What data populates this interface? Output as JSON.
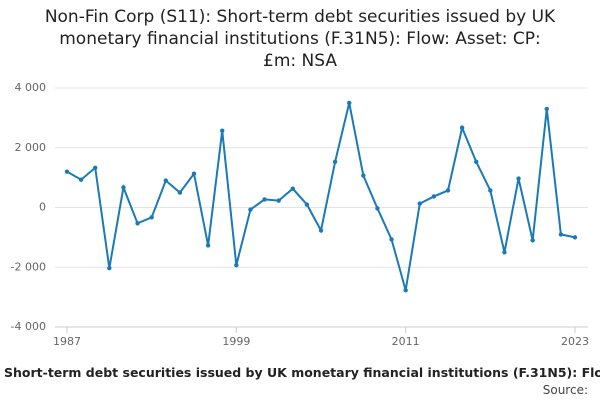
{
  "chart_data": {
    "type": "line",
    "title": [
      "Non-Fin Corp (S11): Short-term debt securities issued by UK",
      "monetary financial institutions (F.31N5): Flow: Asset: CP:",
      "£m: NSA"
    ],
    "x": [
      1987,
      1988,
      1989,
      1990,
      1991,
      1992,
      1993,
      1994,
      1995,
      1996,
      1997,
      1998,
      1999,
      2000,
      2001,
      2002,
      2003,
      2004,
      2005,
      2006,
      2007,
      2008,
      2009,
      2010,
      2011,
      2012,
      2013,
      2014,
      2015,
      2016,
      2017,
      2018,
      2019,
      2020,
      2021,
      2022,
      2023
    ],
    "series": [
      {
        "color": "#1a7ab8",
        "values": [
          1200,
          930,
          1330,
          -2030,
          670,
          -530,
          -330,
          900,
          500,
          1130,
          -1270,
          2570,
          -1930,
          -70,
          270,
          230,
          630,
          100,
          -770,
          1530,
          3500,
          1070,
          -30,
          -1070,
          -2770,
          130,
          370,
          570,
          2670,
          1530,
          570,
          -1500,
          970,
          -1100,
          3300,
          -900,
          -1000
        ]
      }
    ],
    "xlim": [
      1987,
      2023
    ],
    "xticks": [
      1987,
      1999,
      2011,
      2023
    ],
    "ylim": [
      -4000,
      4000
    ],
    "yticks": [
      {
        "value": -4000,
        "label": "-4 000"
      },
      {
        "value": -2000,
        "label": "-2 000"
      },
      0,
      {
        "value": 2000,
        "label": "2 000"
      },
      {
        "value": 4000,
        "label": "4 000"
      }
    ],
    "grid": true,
    "footer": "Short-term debt securities issued by UK monetary financial institutions (F.31N5): Flo",
    "source": "Source:"
  }
}
